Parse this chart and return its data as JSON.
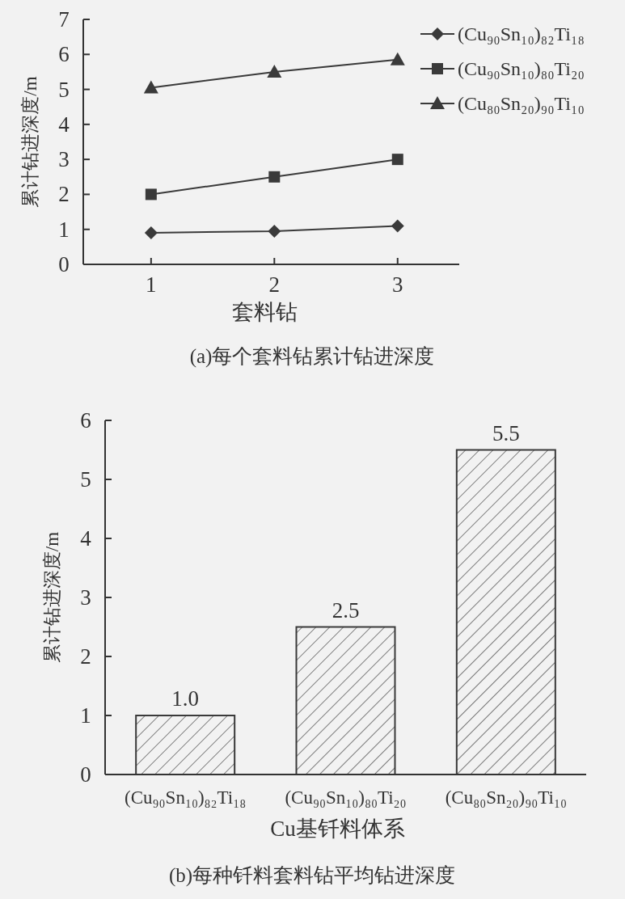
{
  "chart_data": [
    {
      "type": "line",
      "title": "(a)每个套料钻累计钻进深度",
      "xlabel": "套料钻",
      "ylabel": "累计钻进深度/m",
      "x": [
        1,
        2,
        3
      ],
      "xlim": [
        0.45,
        3.5
      ],
      "xticks": [
        1,
        2,
        3
      ],
      "ylim": [
        0,
        7
      ],
      "yticks": [
        0,
        1,
        2,
        3,
        4,
        5,
        6,
        7
      ],
      "legend": "top right",
      "grid": false,
      "series": [
        {
          "name": "(Cu₉₀Sn₁₀)₈₂Ti₁₈",
          "color": "#3a3a3a",
          "marker": "diamond",
          "values": [
            0.9,
            0.95,
            1.1
          ]
        },
        {
          "name": "(Cu₉₀Sn₁₀)₈₀Ti₂₀",
          "color": "#3a3a3a",
          "marker": "square",
          "values": [
            2.0,
            2.5,
            3.0
          ]
        },
        {
          "name": "(Cu₈₀Sn₂₀)₉₀Ti₁₀",
          "color": "#3a3a3a",
          "marker": "triangle",
          "values": [
            5.05,
            5.5,
            5.85
          ]
        }
      ]
    },
    {
      "type": "bar",
      "title": "(b)每种钎料套料钻平均钻进深度",
      "xlabel": "Cu基钎料体系",
      "ylabel": "累计钻进深度/m",
      "categories": [
        "(Cu₉₀Sn₁₀)₈₂Ti₁₈",
        "(Cu₉₀Sn₁₀)₈₀Ti₂₀",
        "(Cu₈₀Sn₂₀)₉₀Ti₁₀"
      ],
      "values": [
        1.0,
        2.5,
        5.5
      ],
      "value_labels": [
        "1.0",
        "2.5",
        "5.5"
      ],
      "color": "#3a3a3a",
      "ylim": [
        0,
        6
      ],
      "yticks": [
        0,
        1,
        2,
        3,
        4,
        5,
        6
      ],
      "grid": false
    }
  ]
}
